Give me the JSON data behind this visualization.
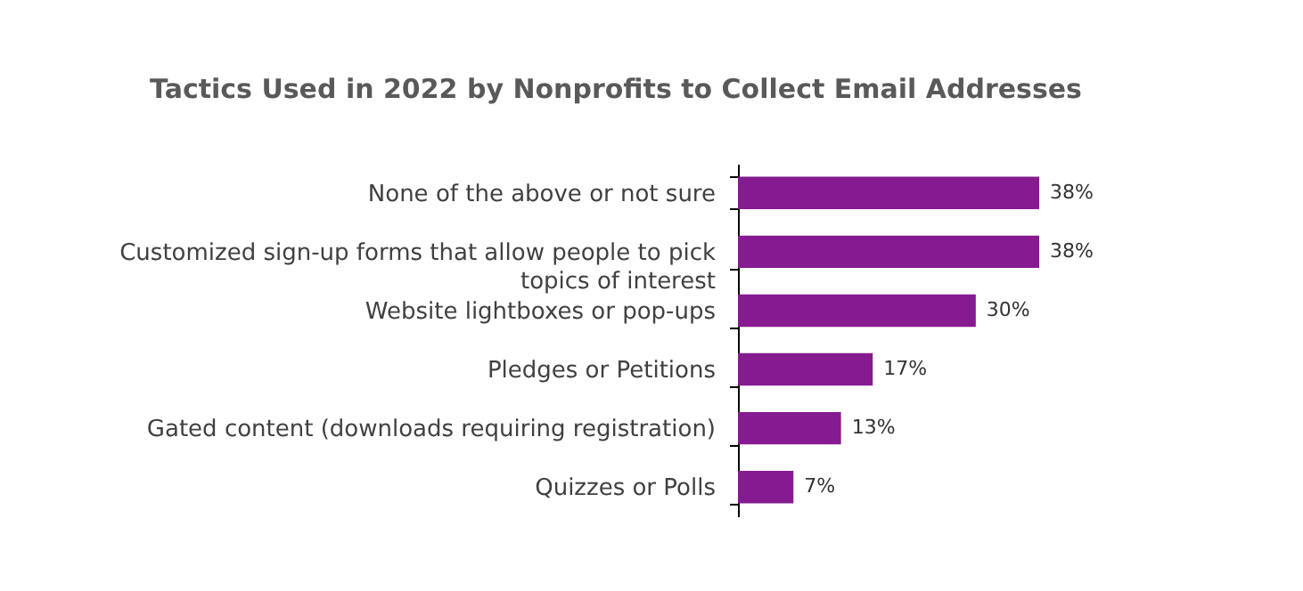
{
  "chart_data": {
    "type": "bar",
    "orientation": "horizontal",
    "title": "Tactics Used in 2022 by Nonprofits to Collect Email Addresses",
    "categories": [
      "None of the above or not sure",
      "Customized sign-up forms that allow people to pick topics of interest",
      "Website lightboxes or pop-ups",
      "Pledges or Petitions",
      "Gated content (downloads requiring registration)",
      "Quizzes or Polls"
    ],
    "values": [
      38,
      38,
      30,
      17,
      13,
      7
    ],
    "value_labels": [
      "38%",
      "38%",
      "30%",
      "17%",
      "13%",
      "7%"
    ],
    "color": "#861a91",
    "grid": false
  }
}
